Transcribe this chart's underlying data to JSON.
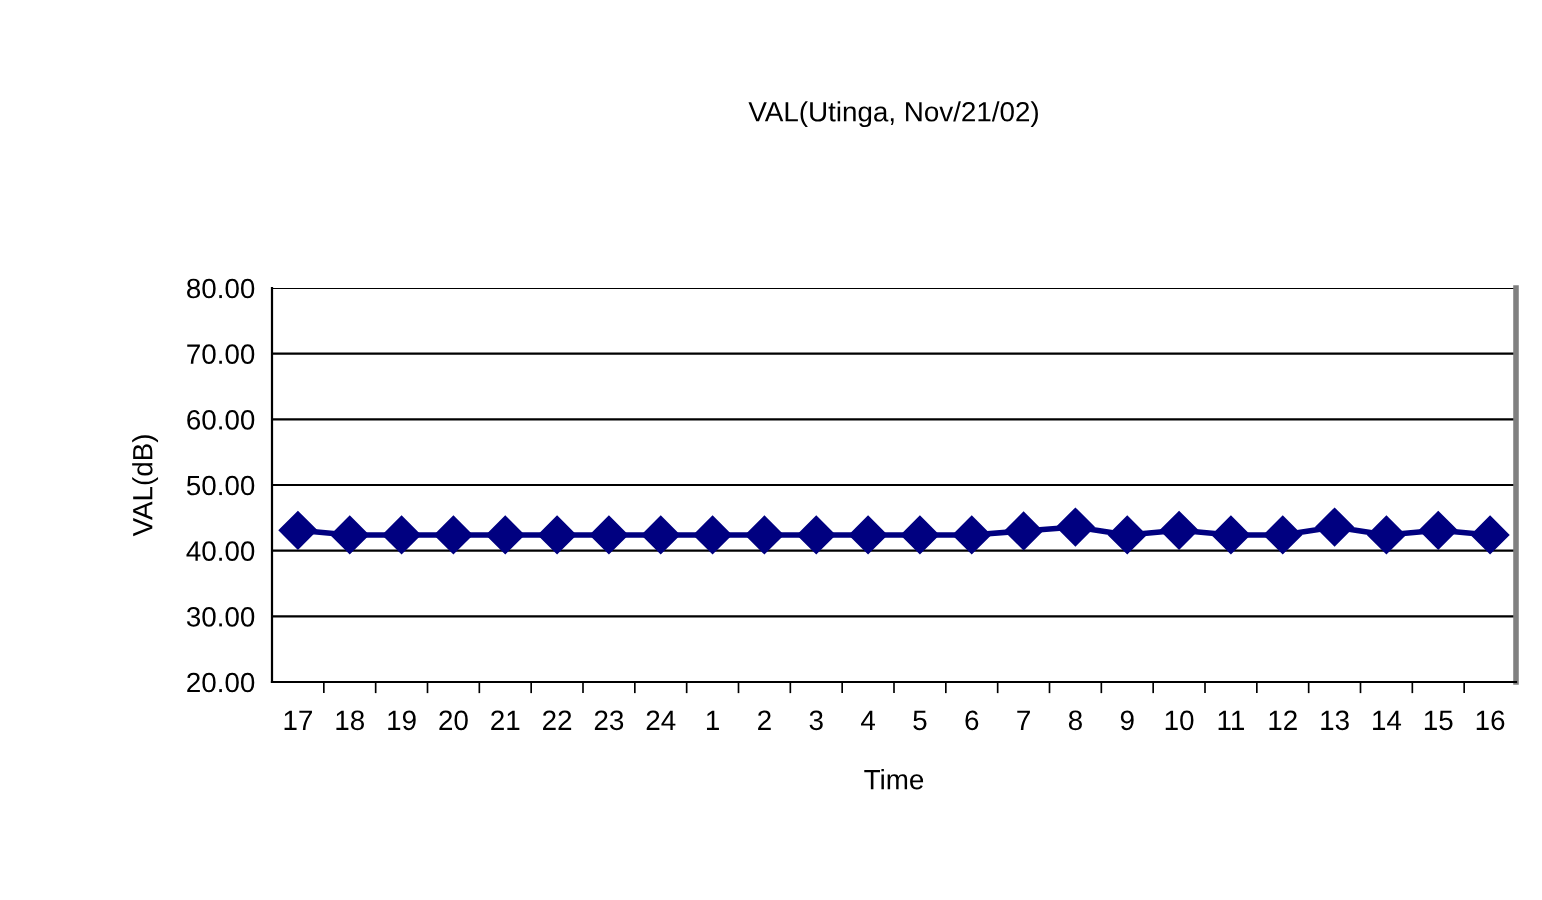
{
  "chart_data": {
    "type": "line",
    "title": "VAL(Utinga, Nov/21/02)",
    "xlabel": "Time",
    "ylabel": "VAL(dB)",
    "categories": [
      "17",
      "18",
      "19",
      "20",
      "21",
      "22",
      "23",
      "24",
      "1",
      "2",
      "3",
      "4",
      "5",
      "6",
      "7",
      "8",
      "9",
      "10",
      "11",
      "12",
      "13",
      "14",
      "15",
      "16"
    ],
    "series": [
      {
        "color": "#000080",
        "values": [
          43.1,
          42.4,
          42.4,
          42.4,
          42.4,
          42.4,
          42.4,
          42.4,
          42.4,
          42.4,
          42.4,
          42.4,
          42.4,
          42.4,
          43.0,
          43.6,
          42.4,
          43.1,
          42.4,
          42.4,
          43.6,
          42.4,
          43.1,
          42.4
        ]
      }
    ],
    "ylim": [
      20,
      80
    ],
    "yticks": [
      {
        "value": 20,
        "label": "20.00"
      },
      {
        "value": 30,
        "label": "30.00"
      },
      {
        "value": 40,
        "label": "40.00"
      },
      {
        "value": 50,
        "label": "50.00"
      },
      {
        "value": 60,
        "label": "60.00"
      },
      {
        "value": 70,
        "label": "70.00"
      },
      {
        "value": 80,
        "label": "80.00"
      }
    ],
    "grid": "y",
    "marker": "diamond",
    "line_style": "solid"
  }
}
